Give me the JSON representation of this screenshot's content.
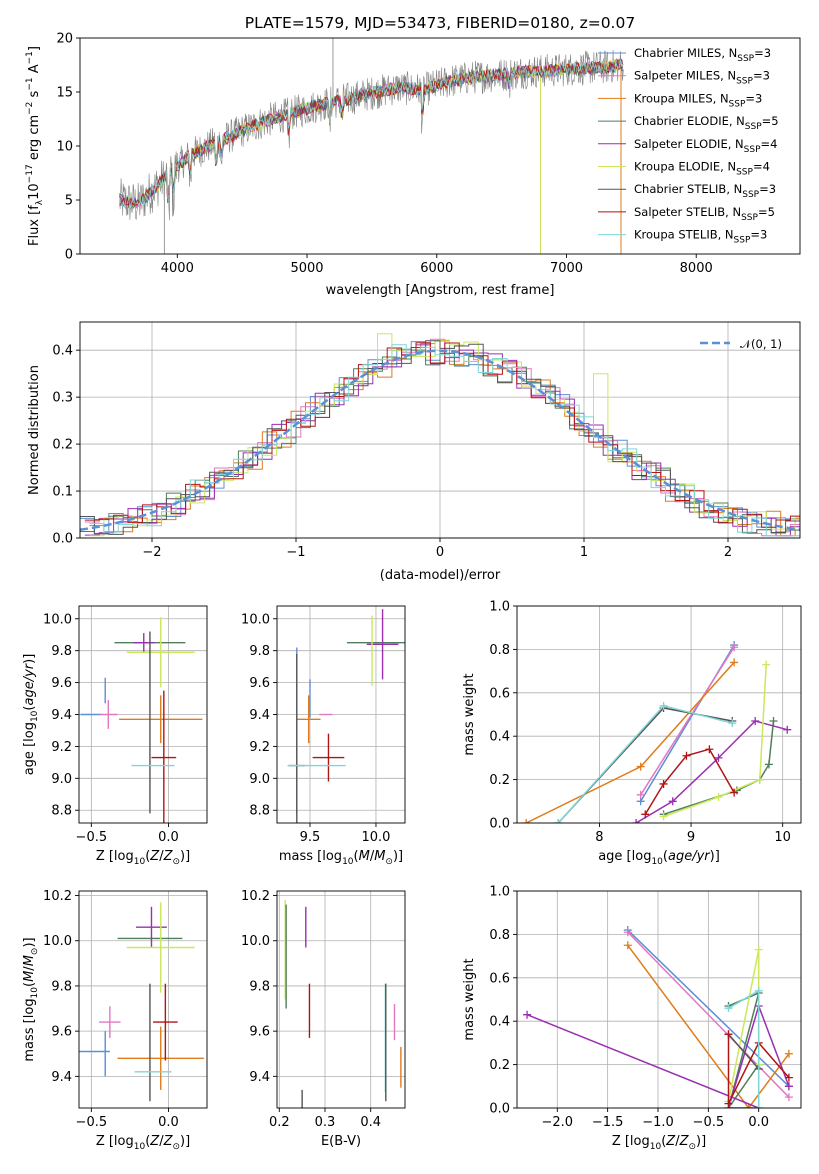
{
  "chart_data": [
    {
      "type": "line",
      "title": "PLATE=1579, MJD=53473, FIBERID=0180, z=0.07",
      "xlabel": "wavelength [Angstrom, rest frame]",
      "ylabel": "Flux [fλ10⁻¹⁷ erg cm⁻² s⁻¹ A⁻¹]",
      "xlim": [
        3250,
        8800
      ],
      "ylim": [
        0,
        20
      ],
      "xticks": [
        4000,
        5000,
        6000,
        7000,
        8000
      ],
      "yticks": [
        0,
        5,
        10,
        15,
        20
      ],
      "legend_position": "right",
      "series": [
        {
          "name": "Chabrier MILES, N_SSP=3",
          "color": "#5b8fd6"
        },
        {
          "name": "Salpeter MILES, N_SSP=3",
          "color": "#e377c2"
        },
        {
          "name": "Kroupa MILES, N_SSP=3",
          "color": "#e07b1a"
        },
        {
          "name": "Chabrier ELODIE, N_SSP=5",
          "color": "#4f7f5a"
        },
        {
          "name": "Salpeter ELODIE, N_SSP=4",
          "color": "#9a2fb0"
        },
        {
          "name": "Kroupa ELODIE, N_SSP=4",
          "color": "#cbe85a"
        },
        {
          "name": "Chabrier STELIB, N_SSP=3",
          "color": "#555555"
        },
        {
          "name": "Salpeter STELIB, N_SSP=5",
          "color": "#b01515"
        },
        {
          "name": "Kroupa STELIB, N_SSP=3",
          "color": "#7fd6d6"
        }
      ],
      "continuum": {
        "x": [
          3550,
          3700,
          3900,
          4100,
          4300,
          4500,
          4700,
          4900,
          5100,
          5300,
          5500,
          5700,
          5900,
          6100,
          6300,
          6500,
          6700,
          6900,
          7100,
          7300,
          7450
        ],
        "y": [
          5.0,
          4.6,
          7.0,
          9.2,
          10.3,
          11.4,
          12.4,
          13.1,
          13.8,
          14.3,
          14.9,
          15.4,
          15.2,
          16.0,
          16.4,
          16.6,
          16.9,
          17.0,
          17.2,
          17.3,
          17.5
        ]
      }
    },
    {
      "type": "histogram",
      "xlabel": "(data-model)/error",
      "ylabel": "Normed distribution",
      "xlim": [
        -2.5,
        2.5
      ],
      "ylim": [
        0,
        0.46
      ],
      "xticks": [
        -2,
        -1,
        0,
        1,
        2
      ],
      "yticks": [
        0.0,
        0.1,
        0.2,
        0.3,
        0.4
      ],
      "legend": "𝒩(0, 1)",
      "legend_position": "top-right",
      "gaussian": {
        "mean": 0,
        "sigma": 1,
        "color": "#5b8fd6"
      }
    },
    {
      "type": "errorbar",
      "xlabel": "Z [log10(Z/Z⊙)]",
      "ylabel": "age  [log10(age/yr)]",
      "xlim": [
        -0.58,
        0.25
      ],
      "ylim": [
        8.72,
        10.08
      ],
      "xticks": [
        -0.5,
        0.0
      ],
      "yticks": [
        8.8,
        9.0,
        9.2,
        9.4,
        9.6,
        9.8,
        10.0
      ],
      "points": [
        {
          "x": -0.5,
          "y": 9.4,
          "xerr": 0.07,
          "yerr": 0.0,
          "color": "#5b8fd6"
        },
        {
          "x": -0.41,
          "y": 9.55,
          "xerr": 0.0,
          "yerr": 0.08,
          "color": "#5b8fd6"
        },
        {
          "x": -0.39,
          "y": 9.4,
          "xerr": 0.06,
          "yerr": 0.09,
          "color": "#e377c2"
        },
        {
          "x": -0.05,
          "y": 9.37,
          "xerr": 0.27,
          "yerr": 0.15,
          "color": "#e07b1a"
        },
        {
          "x": -0.12,
          "y": 9.85,
          "xerr": 0.23,
          "yerr": 0.0,
          "color": "#4f7f5a"
        },
        {
          "x": -0.16,
          "y": 9.85,
          "xerr": 0.07,
          "yerr": 0.06,
          "color": "#9a2fb0"
        },
        {
          "x": -0.05,
          "y": 9.79,
          "xerr": 0.22,
          "yerr": 0.22,
          "color": "#cbe85a"
        },
        {
          "x": -0.12,
          "y": 9.35,
          "xerr": 0.0,
          "yerr": 0.57,
          "color": "#555555"
        },
        {
          "x": -0.03,
          "y": 9.13,
          "xerr": 0.08,
          "yerr": 0.42,
          "color": "#b01515"
        },
        {
          "x": -0.1,
          "y": 9.08,
          "xerr": 0.14,
          "yerr": 0.0,
          "color": "#7fd6d6"
        }
      ]
    },
    {
      "type": "errorbar",
      "xlabel": "mass [log10(M/M⊙)]",
      "ylabel": "",
      "xlim": [
        9.25,
        10.22
      ],
      "ylim": [
        8.72,
        10.08
      ],
      "xticks": [
        9.5,
        10.0
      ],
      "yticks": [
        8.8,
        9.0,
        9.2,
        9.4,
        9.6,
        9.8,
        10.0
      ],
      "points": [
        {
          "x": 9.4,
          "y": 9.3,
          "xerr": 0.0,
          "yerr": 0.52,
          "color": "#5b8fd6"
        },
        {
          "x": 9.5,
          "y": 9.5,
          "xerr": 0.0,
          "yerr": 0.12,
          "color": "#5b8fd6"
        },
        {
          "x": 9.62,
          "y": 9.4,
          "xerr": 0.05,
          "yerr": 0.0,
          "color": "#e377c2"
        },
        {
          "x": 9.49,
          "y": 9.37,
          "xerr": 0.09,
          "yerr": 0.15,
          "color": "#e07b1a"
        },
        {
          "x": 10.06,
          "y": 9.85,
          "xerr": 0.28,
          "yerr": 0.0,
          "color": "#4f7f5a"
        },
        {
          "x": 10.05,
          "y": 9.84,
          "xerr": 0.12,
          "yerr": 0.22,
          "color": "#9a2fb0"
        },
        {
          "x": 9.97,
          "y": 9.8,
          "xerr": 0.0,
          "yerr": 0.22,
          "color": "#cbe85a"
        },
        {
          "x": 9.4,
          "y": 9.08,
          "xerr": 0.06,
          "yerr": 0.7,
          "color": "#555555"
        },
        {
          "x": 9.64,
          "y": 9.13,
          "xerr": 0.12,
          "yerr": 0.15,
          "color": "#b01515"
        },
        {
          "x": 9.55,
          "y": 9.08,
          "xerr": 0.22,
          "yerr": 0.0,
          "color": "#7fd6d6"
        }
      ]
    },
    {
      "type": "line",
      "xlabel": "age  [log10(age/yr)]",
      "ylabel": "mass weight",
      "xlim": [
        7.1,
        10.2
      ],
      "ylim": [
        0,
        1.0
      ],
      "xticks": [
        8,
        9,
        10
      ],
      "yticks": [
        0.0,
        0.2,
        0.4,
        0.6,
        0.8,
        1.0
      ],
      "series": [
        {
          "name": "Chabrier MILES",
          "color": "#5b8fd6",
          "x": [
            8.45,
            9.47
          ],
          "y": [
            0.1,
            0.82
          ]
        },
        {
          "name": "Salpeter MILES",
          "color": "#e377c2",
          "x": [
            8.45,
            9.47
          ],
          "y": [
            0.13,
            0.81
          ]
        },
        {
          "name": "Kroupa MILES",
          "color": "#e07b1a",
          "x": [
            7.2,
            8.45,
            9.47
          ],
          "y": [
            0.0,
            0.26,
            0.74
          ]
        },
        {
          "name": "Chabrier ELODIE",
          "color": "#4f7f5a",
          "x": [
            8.7,
            9.5,
            9.75,
            9.85,
            9.9
          ],
          "y": [
            0.04,
            0.15,
            0.2,
            0.27,
            0.47
          ]
        },
        {
          "name": "Salpeter ELODIE",
          "color": "#9a2fb0",
          "x": [
            8.4,
            8.8,
            9.3,
            9.7,
            10.05
          ],
          "y": [
            0.0,
            0.1,
            0.3,
            0.47,
            0.43
          ]
        },
        {
          "name": "Kroupa ELODIE",
          "color": "#cbe85a",
          "x": [
            8.7,
            9.3,
            9.75,
            9.82
          ],
          "y": [
            0.03,
            0.12,
            0.2,
            0.73
          ]
        },
        {
          "name": "Chabrier STELIB",
          "color": "#555555",
          "x": [
            7.55,
            8.7,
            9.45
          ],
          "y": [
            0.0,
            0.53,
            0.47
          ]
        },
        {
          "name": "Salpeter STELIB",
          "color": "#b01515",
          "x": [
            8.5,
            8.7,
            8.95,
            9.2,
            9.47
          ],
          "y": [
            0.04,
            0.18,
            0.31,
            0.34,
            0.14
          ]
        },
        {
          "name": "Kroupa STELIB",
          "color": "#7fd6d6",
          "x": [
            7.55,
            8.7,
            9.45
          ],
          "y": [
            0.0,
            0.54,
            0.46
          ]
        }
      ]
    },
    {
      "type": "errorbar",
      "xlabel": "Z [log10(Z/Z⊙)]",
      "ylabel": "mass [log10(M/M⊙)]",
      "xlim": [
        -0.58,
        0.25
      ],
      "ylim": [
        9.26,
        10.22
      ],
      "xticks": [
        -0.5,
        0.0
      ],
      "yticks": [
        9.4,
        9.6,
        9.8,
        10.0,
        10.2
      ],
      "points": [
        {
          "x": -0.48,
          "y": 9.51,
          "xerr": 0.1,
          "yerr": 0.0,
          "color": "#5b8fd6"
        },
        {
          "x": -0.41,
          "y": 9.5,
          "xerr": 0.0,
          "yerr": 0.1,
          "color": "#5b8fd6"
        },
        {
          "x": -0.38,
          "y": 9.64,
          "xerr": 0.07,
          "yerr": 0.07,
          "color": "#e377c2"
        },
        {
          "x": -0.05,
          "y": 9.48,
          "xerr": 0.28,
          "yerr": 0.14,
          "color": "#e07b1a"
        },
        {
          "x": -0.12,
          "y": 10.01,
          "xerr": 0.21,
          "yerr": 0.0,
          "color": "#4f7f5a"
        },
        {
          "x": -0.11,
          "y": 10.06,
          "xerr": 0.1,
          "yerr": 0.09,
          "color": "#9a2fb0"
        },
        {
          "x": -0.05,
          "y": 9.97,
          "xerr": 0.22,
          "yerr": 0.2,
          "color": "#cbe85a"
        },
        {
          "x": -0.12,
          "y": 9.55,
          "xerr": 0.0,
          "yerr": 0.26,
          "color": "#555555"
        },
        {
          "x": -0.02,
          "y": 9.64,
          "xerr": 0.08,
          "yerr": 0.17,
          "color": "#b01515"
        },
        {
          "x": -0.1,
          "y": 9.42,
          "xerr": 0.12,
          "yerr": 0.0,
          "color": "#7fd6d6"
        }
      ]
    },
    {
      "type": "errorbar",
      "xlabel": "E(B-V)",
      "ylabel": "",
      "xlim": [
        0.195,
        0.475
      ],
      "ylim": [
        9.26,
        10.22
      ],
      "xticks": [
        0.2,
        0.3,
        0.4
      ],
      "yticks": [
        9.4,
        9.6,
        9.8,
        10.0,
        10.2
      ],
      "points": [
        {
          "x": 0.213,
          "y": 9.96,
          "xerr": 0.0,
          "yerr": 0.22,
          "color": "#cbe85a"
        },
        {
          "x": 0.215,
          "y": 9.93,
          "xerr": 0.0,
          "yerr": 0.23,
          "color": "#4f7f5a"
        },
        {
          "x": 0.258,
          "y": 10.06,
          "xerr": 0.0,
          "yerr": 0.09,
          "color": "#9a2fb0"
        },
        {
          "x": 0.266,
          "y": 9.69,
          "xerr": 0.0,
          "yerr": 0.12,
          "color": "#b01515"
        },
        {
          "x": 0.25,
          "y": 9.3,
          "xerr": 0.0,
          "yerr": 0.04,
          "color": "#555555"
        },
        {
          "x": 0.432,
          "y": 9.57,
          "xerr": 0.0,
          "yerr": 0.24,
          "color": "#7fd6d6"
        },
        {
          "x": 0.433,
          "y": 9.55,
          "xerr": 0.0,
          "yerr": 0.26,
          "color": "#555555"
        },
        {
          "x": 0.452,
          "y": 9.64,
          "xerr": 0.0,
          "yerr": 0.08,
          "color": "#e377c2"
        },
        {
          "x": 0.466,
          "y": 9.44,
          "xerr": 0.0,
          "yerr": 0.09,
          "color": "#e07b1a"
        }
      ]
    },
    {
      "type": "line",
      "xlabel": "Z [log10(Z/Z⊙)]",
      "ylabel": "mass weight",
      "xlim": [
        -2.4,
        0.42
      ],
      "ylim": [
        0,
        1.0
      ],
      "xticks": [
        -2.0,
        -1.5,
        -1.0,
        -0.5,
        0.0
      ],
      "yticks": [
        0.0,
        0.2,
        0.4,
        0.6,
        0.8,
        1.0
      ],
      "series": [
        {
          "name": "Chabrier MILES",
          "color": "#5b8fd6",
          "x": [
            -1.3,
            0.3
          ],
          "y": [
            0.82,
            0.1
          ]
        },
        {
          "name": "Salpeter MILES",
          "color": "#e377c2",
          "x": [
            -1.3,
            0.3
          ],
          "y": [
            0.81,
            0.05
          ]
        },
        {
          "name": "Kroupa MILES",
          "color": "#e07b1a",
          "x": [
            -1.3,
            -0.1,
            0.3
          ],
          "y": [
            0.75,
            0.0,
            0.25
          ]
        },
        {
          "name": "Chabrier ELODIE",
          "color": "#4f7f5a",
          "x": [
            -0.3,
            0.0,
            -0.3,
            0.0
          ],
          "y": [
            0.47,
            0.53,
            0.0,
            0.2
          ]
        },
        {
          "name": "Salpeter ELODIE",
          "color": "#9a2fb0",
          "x": [
            -2.3,
            0.0,
            -0.3,
            0.0,
            0.3
          ],
          "y": [
            0.43,
            0.0,
            0.0,
            0.47,
            0.1
          ]
        },
        {
          "name": "Kroupa ELODIE",
          "color": "#cbe85a",
          "x": [
            -0.3,
            0.0,
            0.0
          ],
          "y": [
            0.03,
            0.73,
            0.2
          ]
        },
        {
          "name": "Chabrier STELIB",
          "color": "#555555",
          "x": [
            -0.3,
            0.0
          ],
          "y": [
            0.34,
            0.18
          ]
        },
        {
          "name": "Salpeter STELIB",
          "color": "#b01515",
          "x": [
            -0.3,
            -0.3,
            0.0,
            0.3
          ],
          "y": [
            0.34,
            0.02,
            0.3,
            0.14
          ]
        },
        {
          "name": "Kroupa STELIB",
          "color": "#7fd6d6",
          "x": [
            -0.3,
            0.0,
            0.0
          ],
          "y": [
            0.46,
            0.54,
            0.0
          ]
        }
      ]
    }
  ]
}
